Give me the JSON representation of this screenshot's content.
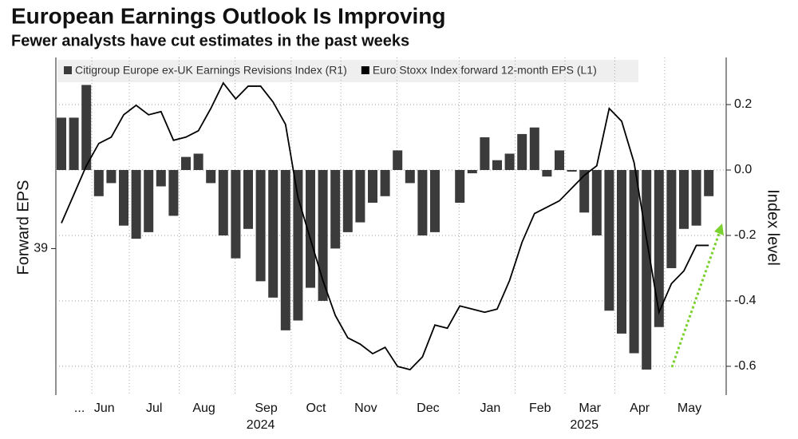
{
  "chart_data": {
    "type": "bar",
    "title": "European Earnings Outlook Is Improving",
    "subtitle": "Fewer analysts have cut estimates in the past weeks",
    "ylabel": "Forward EPS",
    "y2label": "Index level",
    "categories": [
      null,
      "...",
      null,
      "Jun",
      null,
      null,
      null,
      "Jul",
      null,
      null,
      null,
      "Aug",
      null,
      null,
      null,
      null,
      "Sep",
      null,
      null,
      null,
      "Oct",
      null,
      null,
      null,
      "Nov",
      null,
      null,
      null,
      null,
      "Dec",
      null,
      null,
      null,
      null,
      "Jan",
      null,
      null,
      null,
      "Feb",
      null,
      null,
      null,
      "Mar",
      null,
      null,
      null,
      "Apr",
      null,
      null,
      null,
      "May",
      null,
      null
    ],
    "years": [
      null,
      null,
      null,
      null,
      null,
      null,
      null,
      null,
      null,
      null,
      null,
      null,
      null,
      null,
      null,
      null,
      "2024",
      null,
      null,
      null,
      null,
      null,
      null,
      null,
      null,
      null,
      null,
      null,
      null,
      null,
      null,
      null,
      null,
      null,
      null,
      null,
      null,
      null,
      null,
      null,
      null,
      null,
      "2025",
      null,
      null,
      null,
      null,
      null,
      null,
      null,
      null,
      null,
      null
    ],
    "series": [
      {
        "name": "Citigroup Europe ex-UK Earnings Revisions Index (R1)",
        "type": "bar",
        "axis": "y2",
        "color": "#3b3b3b",
        "values": [
          0.16,
          0.16,
          0.26,
          -0.08,
          -0.04,
          -0.17,
          -0.21,
          -0.19,
          -0.05,
          -0.14,
          0.04,
          0.05,
          -0.04,
          -0.2,
          -0.27,
          -0.18,
          -0.34,
          -0.39,
          -0.49,
          -0.46,
          -0.36,
          -0.4,
          -0.24,
          -0.19,
          -0.16,
          -0.1,
          -0.08,
          0.06,
          -0.04,
          -0.2,
          -0.19,
          0,
          -0.1,
          -0.01,
          0.1,
          0.03,
          0.05,
          0.11,
          0.13,
          -0.02,
          0.06,
          -0.005,
          -0.13,
          -0.2,
          -0.43,
          -0.5,
          -0.56,
          -0.61,
          -0.48,
          -0.3,
          -0.18,
          -0.17,
          -0.08
        ]
      },
      {
        "name": "Euro Stoxx Index forward 12-month EPS (L1)",
        "type": "line",
        "axis": "y",
        "color": "#000000",
        "values": [
          39.08,
          39.17,
          39.26,
          39.33,
          39.35,
          39.42,
          39.45,
          39.42,
          39.43,
          39.34,
          39.35,
          39.37,
          39.44,
          39.52,
          39.47,
          39.51,
          39.51,
          39.46,
          39.39,
          39.16,
          39.03,
          38.9,
          38.79,
          38.72,
          38.7,
          38.67,
          38.69,
          38.63,
          38.62,
          38.66,
          38.76,
          38.75,
          38.82,
          38.81,
          38.8,
          38.81,
          38.9,
          39.02,
          39.11,
          39.13,
          39.15,
          39.19,
          39.23,
          39.26,
          39.44,
          39.4,
          39.27,
          39.03,
          38.8,
          38.89,
          38.93,
          39.01,
          39.01
        ]
      }
    ],
    "ylim": [
      38.54,
      39.6
    ],
    "yticks": [
      39
    ],
    "y2lim": [
      -0.688,
      0.344
    ],
    "y2ticks": [
      0.2,
      {
        "value": 0,
        "label": "0.0"
      },
      -0.2,
      -0.4,
      -0.6
    ],
    "grid": true
  }
}
